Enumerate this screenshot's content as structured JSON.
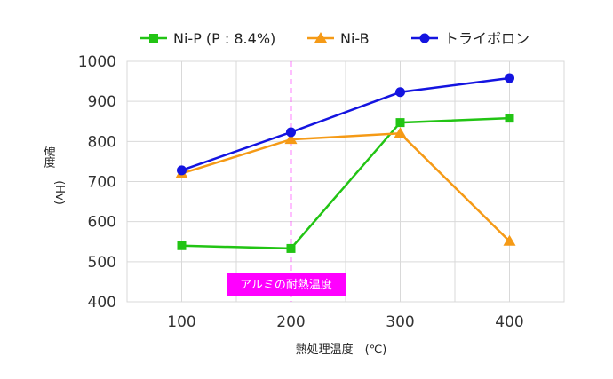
{
  "chart_data": {
    "type": "line",
    "x": [
      100,
      200,
      300,
      400
    ],
    "xlim": [
      50,
      450
    ],
    "ylim": [
      400,
      1000
    ],
    "xticks": [
      "100",
      "200",
      "300",
      "400"
    ],
    "yticks": [
      "400",
      "500",
      "600",
      "700",
      "800",
      "900",
      "1000"
    ],
    "xlabel": "熱処理温度　(℃)",
    "ylabel_main": "硬度",
    "ylabel_unit": "(Hv)",
    "grid": true,
    "legend_position": "top",
    "series": [
      {
        "name": "Ni-P (P : 8.4%)",
        "values": [
          540,
          533,
          847,
          858
        ],
        "color": "#22c414",
        "marker": "square"
      },
      {
        "name": "Ni-B",
        "values": [
          720,
          805,
          820,
          551
        ],
        "color": "#f59a16",
        "marker": "triangle"
      },
      {
        "name": "トライボロン",
        "values": [
          728,
          823,
          923,
          958
        ],
        "color": "#1414e0",
        "marker": "circle"
      }
    ],
    "annotations": [
      {
        "text": "アルミの耐熱温度",
        "x": 200,
        "color": "#ff00ff"
      }
    ]
  }
}
